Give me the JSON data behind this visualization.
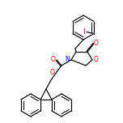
{
  "bg_color": "#ffffff",
  "bond_color": "#000000",
  "atom_colors": {
    "O": "#ff0000",
    "N": "#0000ff",
    "I": "#7f007f",
    "C": "#000000"
  },
  "figsize": [
    1.52,
    1.52
  ],
  "dpi": 100,
  "lw": 0.85,
  "fs": 5.5
}
